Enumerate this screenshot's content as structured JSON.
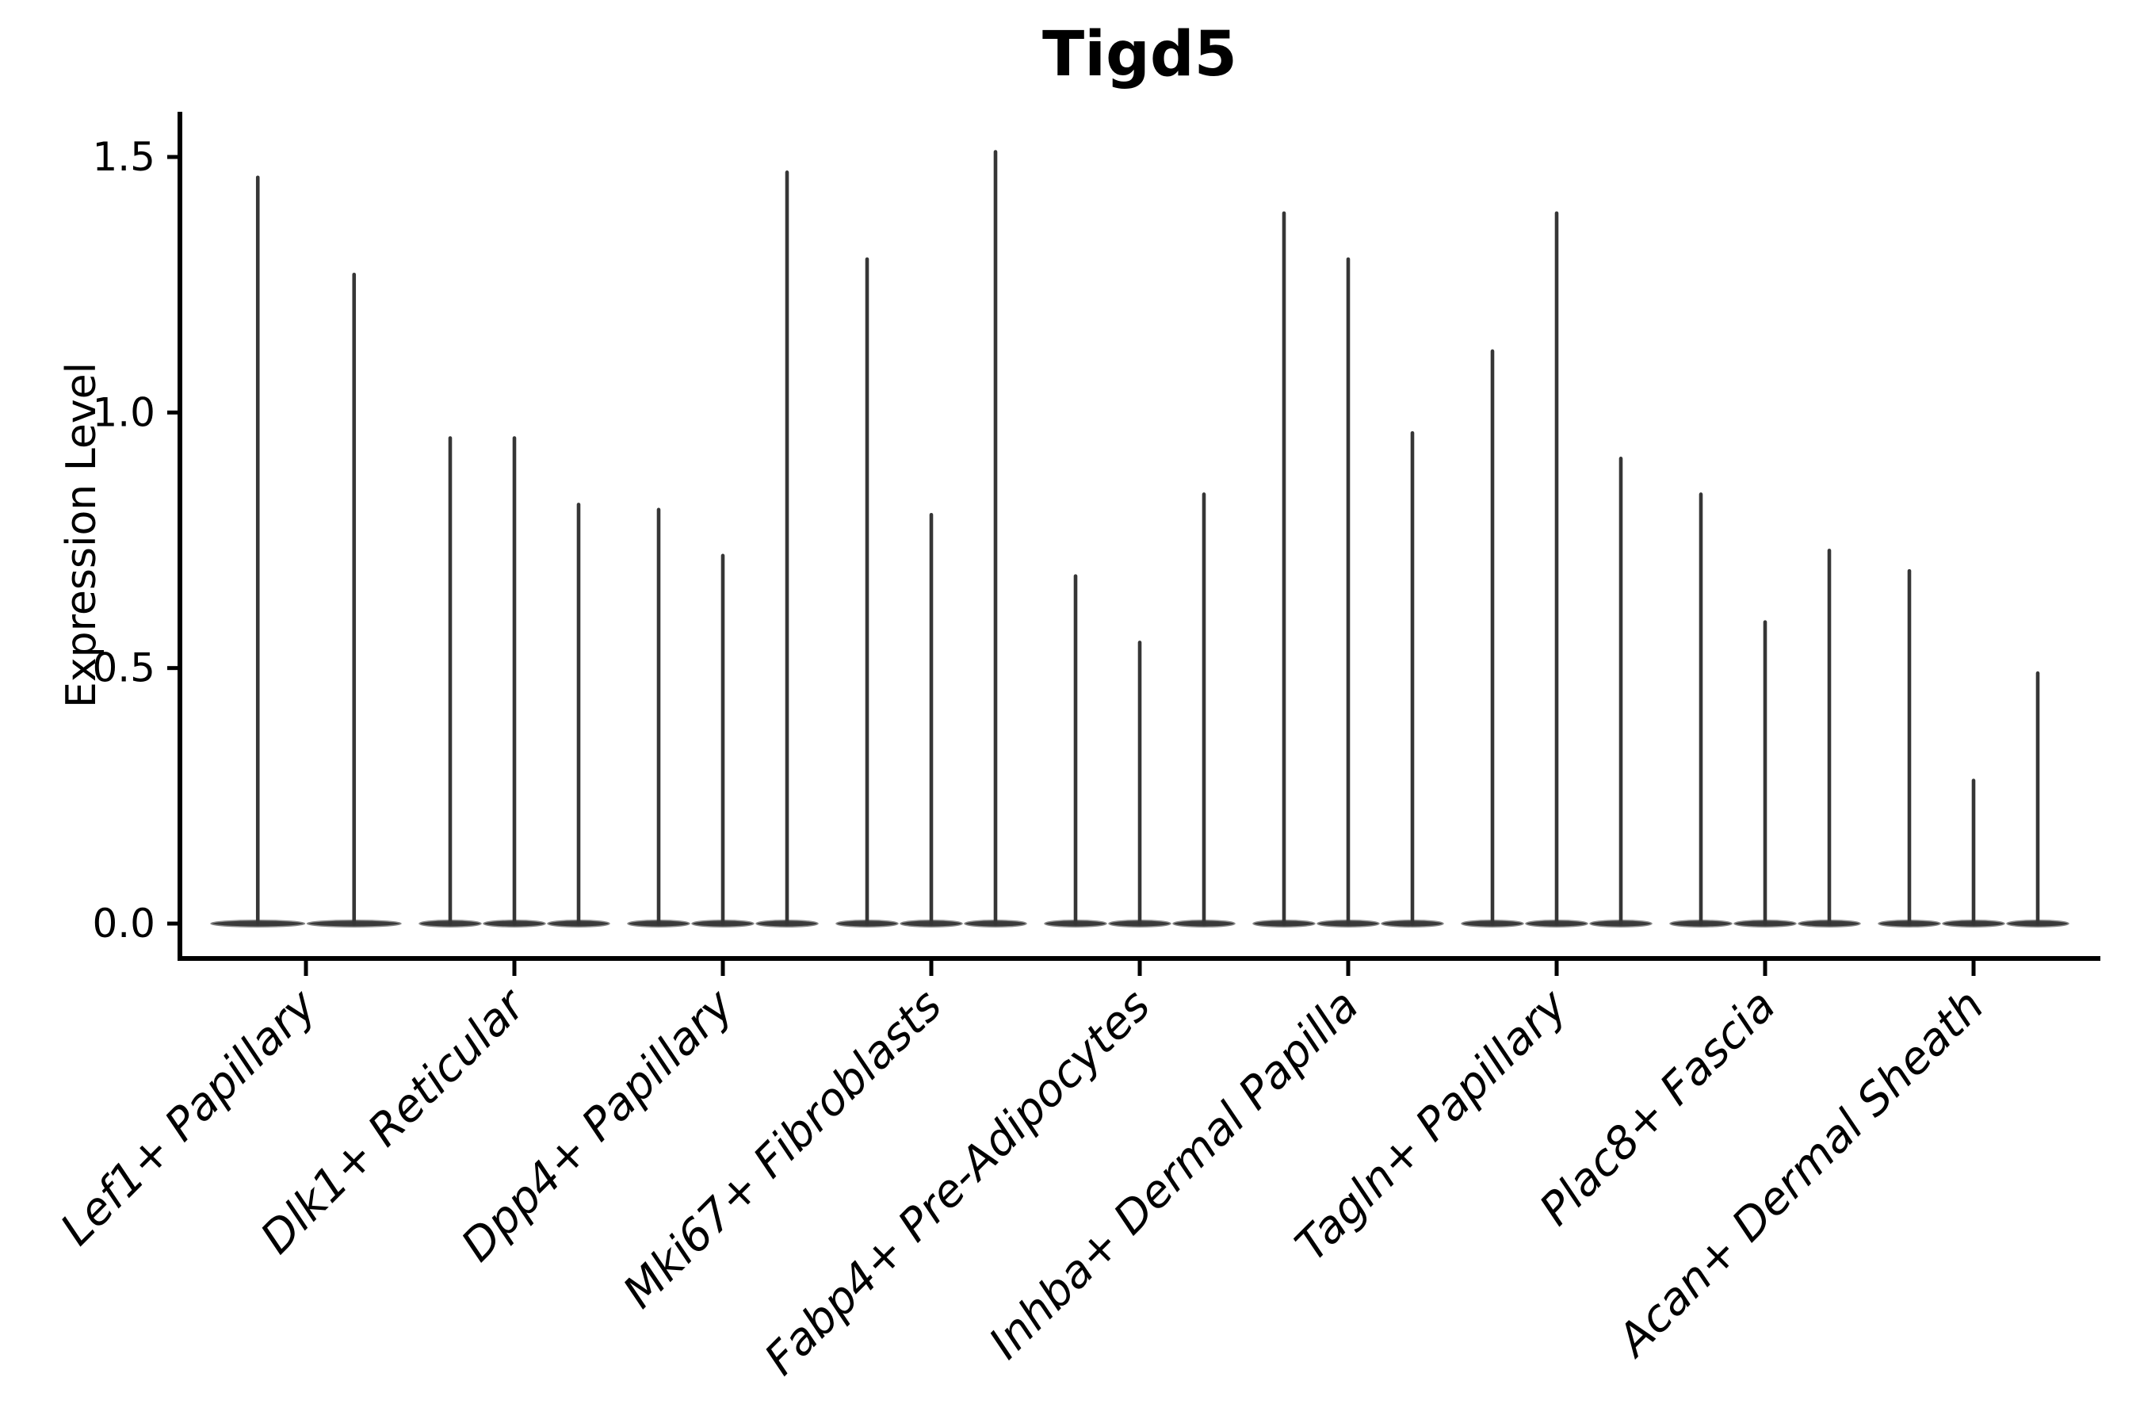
{
  "chart_data": {
    "type": "violin",
    "title": "Tigd5",
    "ylabel": "Expression Level",
    "xlabel": "",
    "categories": [
      "Lef1+ Papillary",
      "Dlk1+ Reticular",
      "Dpp4+ Papillary",
      "Mki67+ Fibroblasts",
      "Fabp4+ Pre-Adipocytes",
      "Inhba+ Dermal Papilla",
      "Tagln+ Papillary",
      "Plac8+ Fascia",
      "Acan+ Dermal Sheath"
    ],
    "violins_per_category": [
      [
        1.46,
        1.27
      ],
      [
        0.95,
        0.95,
        0.82
      ],
      [
        0.81,
        0.72,
        1.47
      ],
      [
        1.3,
        0.8,
        1.51
      ],
      [
        0.68,
        0.55,
        0.84
      ],
      [
        1.39,
        1.3,
        0.96
      ],
      [
        1.12,
        1.39,
        0.91
      ],
      [
        0.84,
        0.59,
        0.73
      ],
      [
        0.69,
        0.28,
        0.49
      ]
    ],
    "violin_shape_note": "each violin is a flat disk at 0 with a thin vertical spike up to its max expression value",
    "yticks": [
      "0.0",
      "0.5",
      "1.0",
      "1.5"
    ],
    "ytick_values": [
      0.0,
      0.5,
      1.0,
      1.5
    ],
    "ylim": [
      -0.07,
      1.59
    ],
    "x_label_rotation_deg": 45,
    "grid": "off",
    "legend": "none",
    "colors": {
      "violin_fill": "#3a3a3a",
      "violin_edge": "#8c8c8c",
      "spike": "#363636",
      "axis": "#000000",
      "text": "#000000",
      "background": "#ffffff"
    }
  }
}
